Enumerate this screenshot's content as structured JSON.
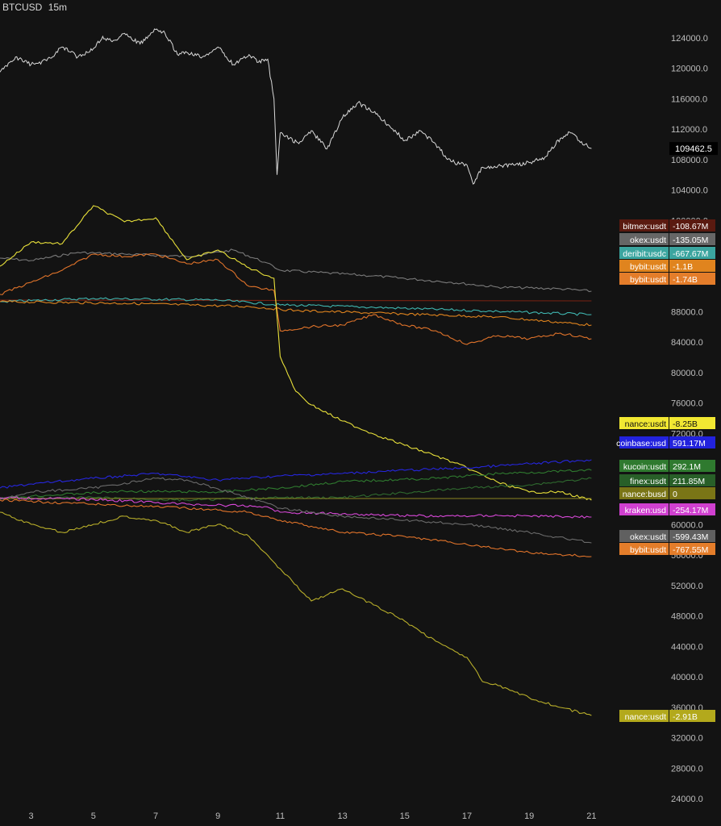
{
  "header": {
    "symbol": "BTCUSD",
    "interval": "15m"
  },
  "chart_data": {
    "type": "line",
    "title": "BTCUSD 15m",
    "x_ticks": [
      "3",
      "5",
      "7",
      "9",
      "11",
      "13",
      "15",
      "17",
      "19",
      "21"
    ],
    "y_ticks": [
      "124000.0",
      "120000.0",
      "116000.0",
      "112000.0",
      "108000.0",
      "104000.0",
      "100000.0",
      "96000.0",
      "92000.0",
      "88000.0",
      "84000.0",
      "80000.0",
      "76000.0",
      "72000.0",
      "68000.0",
      "64000.0",
      "60000.0",
      "56000.0",
      "52000.0",
      "48000.0",
      "44000.0",
      "40000.0",
      "36000.0",
      "32000.0",
      "28000.0",
      "24000.0"
    ],
    "ylim": [
      22000,
      127000
    ],
    "price": {
      "name": "BTCUSD",
      "last_label": "109462.5",
      "color": "#d9d9d9",
      "x": [
        2,
        2.5,
        3,
        3.5,
        4,
        4.5,
        5,
        5.3,
        5.6,
        6,
        6.5,
        7,
        7.3,
        7.7,
        8,
        8.5,
        9,
        9.5,
        10,
        10.3,
        10.6,
        10.8,
        10.9,
        11,
        11.3,
        11.6,
        12,
        12.5,
        13,
        13.5,
        14,
        14.5,
        15,
        15.5,
        16,
        16.3,
        16.6,
        17,
        17.2,
        17.5,
        18,
        18.5,
        19,
        19.5,
        20,
        20.3,
        20.6,
        21
      ],
      "values": [
        119500,
        121500,
        120500,
        121000,
        122800,
        121500,
        122600,
        124200,
        123500,
        124600,
        123200,
        125100,
        124600,
        121800,
        122100,
        121500,
        122800,
        120500,
        121800,
        120800,
        121200,
        116000,
        106000,
        111500,
        110800,
        110100,
        111800,
        109400,
        113500,
        115500,
        114200,
        112500,
        110500,
        111800,
        110000,
        108500,
        107600,
        107300,
        104800,
        107000,
        107200,
        107300,
        107600,
        108300,
        110800,
        111600,
        110500,
        109462
      ]
    },
    "cvd_series": [
      {
        "name": "bitmex:usdt",
        "value_label": "-108.67M",
        "color": "#7a2213",
        "label_color": "#5a1a10",
        "px": [
          [
            2,
            92
          ],
          [
            21,
            93
          ]
        ]
      },
      {
        "name": "okex:usdt",
        "value_label": "-135.05M",
        "color": "#7a7a7a",
        "label_color": "#666666",
        "px": [
          [
            2,
            40
          ],
          [
            3,
            43
          ],
          [
            4.5,
            33
          ],
          [
            6,
            35
          ],
          [
            8,
            38
          ],
          [
            9.5,
            30
          ],
          [
            10.5,
            45
          ],
          [
            11,
            55
          ],
          [
            14,
            62
          ],
          [
            16.5,
            70
          ],
          [
            18,
            76
          ],
          [
            20,
            78
          ],
          [
            21,
            81
          ]
        ]
      },
      {
        "name": "deribit:usdc",
        "value_label": "-667.67M",
        "color": "#3fb6b0",
        "label_color": "#3ba59f",
        "px": [
          [
            2,
            94
          ],
          [
            5,
            90
          ],
          [
            9,
            92
          ],
          [
            11,
            98
          ],
          [
            14,
            101
          ],
          [
            18,
            106
          ],
          [
            21,
            110
          ]
        ]
      },
      {
        "name": "bybit:usdt",
        "value_label": "-1.1B",
        "color": "#e0841e",
        "label_color": "#e0841e",
        "px": [
          [
            2,
            94
          ],
          [
            6,
            96
          ],
          [
            10,
            100
          ],
          [
            11.5,
            105
          ],
          [
            14,
            108
          ],
          [
            18,
            113
          ],
          [
            21,
            123
          ]
        ]
      },
      {
        "name": "bybit:usdt",
        "value_label": "-1.74B",
        "color": "#e0732a",
        "label_color": "#e47d2a",
        "px": [
          [
            2,
            85
          ],
          [
            3,
            70
          ],
          [
            4,
            55
          ],
          [
            5,
            35
          ],
          [
            6,
            38
          ],
          [
            7,
            35
          ],
          [
            8,
            47
          ],
          [
            9,
            42
          ],
          [
            10,
            75
          ],
          [
            10.8,
            80
          ],
          [
            11,
            130
          ],
          [
            12,
            125
          ],
          [
            13,
            123
          ],
          [
            14,
            110
          ],
          [
            15,
            123
          ],
          [
            16,
            130
          ],
          [
            17,
            147
          ],
          [
            18,
            136
          ],
          [
            19,
            140
          ],
          [
            20,
            133
          ],
          [
            21,
            140
          ]
        ]
      },
      {
        "name": "nance:usdt",
        "value_label": "-8.25B",
        "color": "#e8e03a",
        "label_color": "#f2e832",
        "px": [
          [
            2,
            50
          ],
          [
            3,
            20
          ],
          [
            4,
            22
          ],
          [
            5,
            -25
          ],
          [
            6,
            -5
          ],
          [
            7,
            -10
          ],
          [
            8,
            42
          ],
          [
            9,
            30
          ],
          [
            10,
            52
          ],
          [
            10.8,
            65
          ],
          [
            11,
            162
          ],
          [
            11.5,
            205
          ],
          [
            12,
            222
          ],
          [
            13,
            242
          ],
          [
            14,
            258
          ],
          [
            15,
            272
          ],
          [
            16,
            285
          ],
          [
            17,
            300
          ],
          [
            18,
            318
          ],
          [
            19,
            330
          ],
          [
            20,
            330
          ],
          [
            21,
            340
          ]
        ]
      },
      {
        "name": "coinbase:usd",
        "value_label": "591.17M",
        "color": "#2626dd",
        "label_color": "#2222dd",
        "px": [
          [
            2,
            0
          ],
          [
            3,
            -5
          ],
          [
            5,
            -12
          ],
          [
            7,
            -18
          ],
          [
            9,
            -10
          ],
          [
            11,
            -15
          ],
          [
            13,
            -18
          ],
          [
            15,
            -22
          ],
          [
            17,
            -25
          ],
          [
            19,
            -30
          ],
          [
            21,
            -35
          ]
        ]
      },
      {
        "name": "kucoin:usdt",
        "value_label": "292.1M",
        "color": "#2f7a2f",
        "label_color": "#2f7a2f",
        "px": [
          [
            2,
            13
          ],
          [
            3,
            10
          ],
          [
            6,
            4
          ],
          [
            9,
            5
          ],
          [
            11,
            0
          ],
          [
            13,
            -8
          ],
          [
            16,
            -12
          ],
          [
            18,
            -18
          ],
          [
            21,
            -22
          ]
        ]
      },
      {
        "name": "finex:usdt",
        "value_label": "211.85M",
        "color": "#2f6a2f",
        "label_color": "#285f28",
        "px": [
          [
            2,
            13
          ],
          [
            5,
            12
          ],
          [
            8,
            15
          ],
          [
            11,
            12
          ],
          [
            13,
            12
          ],
          [
            15,
            6
          ],
          [
            17,
            0
          ],
          [
            19,
            -4
          ],
          [
            21,
            -12
          ]
        ]
      },
      {
        "name": "nance:busd",
        "value_label": "0",
        "color": "#8c8620",
        "label_color": "#7a7516",
        "px": [
          [
            2,
            13
          ],
          [
            21,
            13
          ]
        ]
      },
      {
        "name": "kraken:usd",
        "value_label": "-254.17M",
        "color": "#d848d8",
        "label_color": "#d040d0",
        "px": [
          [
            2,
            12
          ],
          [
            5,
            14
          ],
          [
            8,
            20
          ],
          [
            10.5,
            23
          ],
          [
            11,
            30
          ],
          [
            13,
            32
          ],
          [
            16,
            35
          ],
          [
            18,
            34
          ],
          [
            21,
            36
          ]
        ]
      },
      {
        "name": "okex:usdt",
        "value_label": "-599.43M",
        "color": "#6a6a6a",
        "label_color": "#606060",
        "px": [
          [
            2,
            14
          ],
          [
            3,
            5
          ],
          [
            5,
            0
          ],
          [
            7,
            -12
          ],
          [
            8,
            -10
          ],
          [
            10,
            12
          ],
          [
            11,
            25
          ],
          [
            13,
            35
          ],
          [
            15,
            40
          ],
          [
            17,
            45
          ],
          [
            19,
            55
          ],
          [
            21,
            68
          ]
        ]
      },
      {
        "name": "bybit:usdt",
        "value_label": "-767.55M",
        "color": "#e0732a",
        "label_color": "#e47d2a",
        "px": [
          [
            2,
            15
          ],
          [
            5,
            20
          ],
          [
            8,
            25
          ],
          [
            10,
            30
          ],
          [
            11,
            40
          ],
          [
            13,
            55
          ],
          [
            15,
            60
          ],
          [
            17,
            70
          ],
          [
            19,
            80
          ],
          [
            21,
            85
          ]
        ]
      },
      {
        "name": "nance:usdt",
        "value_label": "-2.91B",
        "color": "#b8ae2a",
        "label_color": "#b3a91c",
        "px": [
          [
            2,
            30
          ],
          [
            3,
            45
          ],
          [
            4,
            55
          ],
          [
            5,
            45
          ],
          [
            6,
            35
          ],
          [
            7,
            40
          ],
          [
            8,
            55
          ],
          [
            9,
            45
          ],
          [
            10,
            60
          ],
          [
            11,
            100
          ],
          [
            12,
            140
          ],
          [
            13,
            125
          ],
          [
            14,
            145
          ],
          [
            15,
            165
          ],
          [
            16,
            190
          ],
          [
            17,
            210
          ],
          [
            17.5,
            240
          ],
          [
            18,
            245
          ],
          [
            19,
            260
          ],
          [
            20,
            272
          ],
          [
            21,
            282
          ]
        ]
      }
    ]
  }
}
